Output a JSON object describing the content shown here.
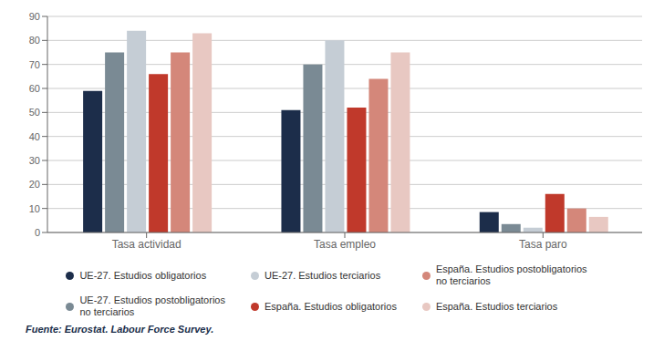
{
  "chart_data": {
    "type": "bar",
    "categories": [
      "Tasa actividad",
      "Tasa empleo",
      "Tasa paro"
    ],
    "series": [
      {
        "name": "UE-27. Estudios obligatorios",
        "color": "#1c2d4a",
        "values": [
          59,
          51,
          8.5
        ]
      },
      {
        "name": "UE-27. Estudios postobligatorios\nno terciarios",
        "color": "#7a8a94",
        "values": [
          75,
          70,
          3.5
        ]
      },
      {
        "name": "UE-27. Estudios terciarios",
        "color": "#c5cdd5",
        "values": [
          84,
          80,
          2
        ]
      },
      {
        "name": "España. Estudios obligatorios",
        "color": "#c0392b",
        "values": [
          66,
          52,
          16
        ]
      },
      {
        "name": "España. Estudios postobligatorios\nno terciarios",
        "color": "#d4877a",
        "values": [
          75,
          64,
          10
        ]
      },
      {
        "name": "España. Estudios terciarios",
        "color": "#e8c8c2",
        "values": [
          83,
          75,
          6.5
        ]
      }
    ],
    "ylim": [
      0,
      90
    ],
    "yticks": [
      0,
      10,
      20,
      30,
      40,
      50,
      60,
      70,
      80,
      90
    ],
    "grid": true,
    "legend": "bottom",
    "annotations": [
      "Fuente: Eurostat. Labour Force Survey."
    ]
  }
}
